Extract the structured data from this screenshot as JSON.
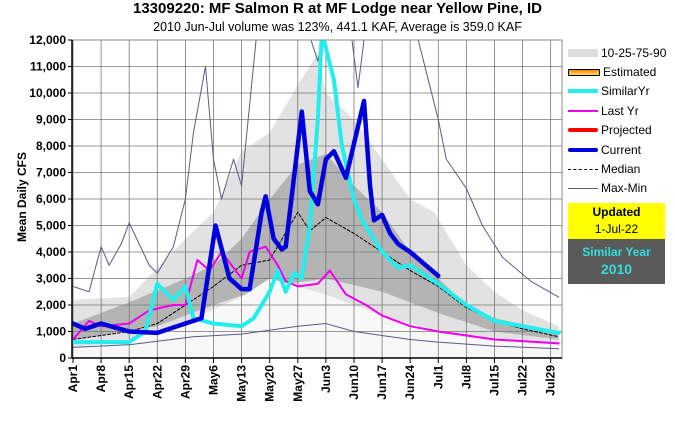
{
  "chart_data": {
    "type": "line",
    "title": "13309220: MF Salmon R at MF Lodge near Yellow Pine, ID",
    "subtitle": "2010 Jun-Jul volume was 123%, 441.1 KAF, Average is 359.0 KAF",
    "xlabel": "",
    "ylabel": "Mean Daily CFS",
    "ylim": [
      0,
      12000
    ],
    "yticks": [
      "0",
      "1,000",
      "2,000",
      "3,000",
      "4,000",
      "5,000",
      "6,000",
      "7,000",
      "8,000",
      "9,000",
      "10,000",
      "11,000",
      "12,000"
    ],
    "xticks": [
      "Apr1",
      "Apr8",
      "Apr15",
      "Apr22",
      "Apr29",
      "May6",
      "May13",
      "May20",
      "May27",
      "Jun3",
      "Jun10",
      "Jun17",
      "Jun24",
      "Jul1",
      "Jul8",
      "Jul15",
      "Jul22",
      "Jul29"
    ],
    "x_unit": "days since Apr1",
    "xlim": [
      0,
      121
    ],
    "grid": true,
    "legend_placement": "right",
    "bands": {
      "p10": [
        [
          0,
          400
        ],
        [
          15,
          700
        ],
        [
          30,
          1500
        ],
        [
          42,
          2300
        ],
        [
          49,
          3000
        ],
        [
          63,
          2400
        ],
        [
          77,
          1600
        ],
        [
          91,
          1000
        ],
        [
          105,
          700
        ],
        [
          121,
          500
        ]
      ],
      "p25": [
        [
          0,
          700
        ],
        [
          21,
          1200
        ],
        [
          35,
          2000
        ],
        [
          49,
          2700
        ],
        [
          63,
          3000
        ],
        [
          77,
          2500
        ],
        [
          91,
          1700
        ],
        [
          105,
          1000
        ],
        [
          121,
          700
        ]
      ],
      "p75": [
        [
          0,
          1300
        ],
        [
          14,
          2100
        ],
        [
          28,
          3000
        ],
        [
          35,
          3500
        ],
        [
          42,
          4500
        ],
        [
          49,
          6000
        ],
        [
          56,
          7300
        ],
        [
          63,
          7700
        ],
        [
          70,
          6500
        ],
        [
          77,
          5500
        ],
        [
          84,
          4000
        ],
        [
          91,
          3000
        ],
        [
          98,
          2000
        ],
        [
          105,
          1500
        ],
        [
          121,
          1000
        ]
      ],
      "p90": [
        [
          0,
          2200
        ],
        [
          14,
          2300
        ],
        [
          28,
          4500
        ],
        [
          35,
          5500
        ],
        [
          42,
          7800
        ],
        [
          49,
          8500
        ],
        [
          56,
          10300
        ],
        [
          61,
          11500
        ],
        [
          63,
          10000
        ],
        [
          70,
          9000
        ],
        [
          77,
          7500
        ],
        [
          84,
          6000
        ],
        [
          90,
          5500
        ],
        [
          98,
          3500
        ],
        [
          105,
          2500
        ],
        [
          112,
          1800
        ],
        [
          121,
          1200
        ]
      ]
    },
    "series": [
      {
        "name": "Max-Min",
        "color": "#5a5a8a",
        "values": [
          [
            0,
            2700
          ],
          [
            4,
            2500
          ],
          [
            7,
            4200
          ],
          [
            9,
            3500
          ],
          [
            12,
            4300
          ],
          [
            14,
            5100
          ],
          [
            19,
            3500
          ],
          [
            21,
            3200
          ],
          [
            25,
            4200
          ],
          [
            28,
            6000
          ],
          [
            30,
            8500
          ],
          [
            33,
            11000
          ],
          [
            35,
            7500
          ],
          [
            37,
            6000
          ],
          [
            40,
            7500
          ],
          [
            42,
            6500
          ],
          [
            46,
            12600
          ],
          [
            58,
            12600
          ],
          [
            61,
            11200
          ],
          [
            63,
            12600
          ],
          [
            69,
            12600
          ],
          [
            71,
            10200
          ],
          [
            73,
            12600
          ],
          [
            86,
            12000
          ],
          [
            91,
            9000
          ],
          [
            93,
            7500
          ],
          [
            98,
            6400
          ],
          [
            102,
            5000
          ],
          [
            107,
            3800
          ],
          [
            114,
            2900
          ],
          [
            121,
            2300
          ]
        ]
      },
      {
        "name": "Max-Min-low",
        "color": "#5a5a8a",
        "values": [
          [
            0,
            400
          ],
          [
            14,
            500
          ],
          [
            30,
            800
          ],
          [
            42,
            900
          ],
          [
            56,
            1200
          ],
          [
            63,
            1300
          ],
          [
            70,
            1000
          ],
          [
            84,
            700
          ],
          [
            91,
            600
          ],
          [
            105,
            450
          ],
          [
            121,
            350
          ]
        ]
      },
      {
        "name": "Median",
        "color": "#000000",
        "values": [
          [
            0,
            700
          ],
          [
            14,
            1000
          ],
          [
            21,
            1300
          ],
          [
            28,
            2000
          ],
          [
            35,
            2700
          ],
          [
            42,
            3500
          ],
          [
            49,
            3700
          ],
          [
            56,
            5500
          ],
          [
            59,
            4800
          ],
          [
            63,
            5300
          ],
          [
            70,
            4700
          ],
          [
            77,
            4000
          ],
          [
            84,
            3300
          ],
          [
            91,
            2700
          ],
          [
            98,
            1900
          ],
          [
            105,
            1400
          ],
          [
            112,
            1100
          ],
          [
            121,
            800
          ]
        ]
      },
      {
        "name": "Last Yr",
        "color": "#ee00ee",
        "values": [
          [
            0,
            700
          ],
          [
            4,
            1400
          ],
          [
            7,
            1200
          ],
          [
            14,
            1300
          ],
          [
            19,
            1800
          ],
          [
            25,
            2000
          ],
          [
            28,
            2000
          ],
          [
            31,
            3700
          ],
          [
            34,
            3300
          ],
          [
            37,
            4000
          ],
          [
            42,
            3000
          ],
          [
            44,
            4000
          ],
          [
            48,
            4200
          ],
          [
            51,
            3500
          ],
          [
            53,
            2900
          ],
          [
            56,
            2700
          ],
          [
            61,
            2800
          ],
          [
            64,
            3300
          ],
          [
            68,
            2400
          ],
          [
            73,
            2000
          ],
          [
            77,
            1600
          ],
          [
            84,
            1200
          ],
          [
            91,
            1000
          ],
          [
            105,
            700
          ],
          [
            121,
            550
          ]
        ]
      },
      {
        "name": "SimilarYr",
        "color": "#22eeee",
        "values": [
          [
            0,
            600
          ],
          [
            14,
            600
          ],
          [
            18,
            1000
          ],
          [
            21,
            2800
          ],
          [
            25,
            2200
          ],
          [
            28,
            2700
          ],
          [
            30,
            1500
          ],
          [
            35,
            1300
          ],
          [
            42,
            1200
          ],
          [
            45,
            1500
          ],
          [
            49,
            2500
          ],
          [
            51,
            3300
          ],
          [
            53,
            2500
          ],
          [
            55,
            3200
          ],
          [
            57,
            3000
          ],
          [
            59,
            5000
          ],
          [
            61,
            9000
          ],
          [
            62,
            12300
          ],
          [
            65,
            10500
          ],
          [
            67,
            8000
          ],
          [
            70,
            6000
          ],
          [
            72,
            5200
          ],
          [
            77,
            4000
          ],
          [
            81,
            3400
          ],
          [
            84,
            3500
          ],
          [
            91,
            2800
          ],
          [
            98,
            2000
          ],
          [
            105,
            1400
          ],
          [
            112,
            1200
          ],
          [
            121,
            950
          ]
        ]
      },
      {
        "name": "Current",
        "color": "#0000dd",
        "values": [
          [
            0,
            1300
          ],
          [
            3,
            1100
          ],
          [
            7,
            1300
          ],
          [
            14,
            1000
          ],
          [
            21,
            950
          ],
          [
            28,
            1300
          ],
          [
            32,
            1500
          ],
          [
            35.5,
            5000
          ],
          [
            39,
            3000
          ],
          [
            42,
            2600
          ],
          [
            44,
            2600
          ],
          [
            47,
            5500
          ],
          [
            48,
            6100
          ],
          [
            50,
            4500
          ],
          [
            52,
            4100
          ],
          [
            53,
            4200
          ],
          [
            57,
            9300
          ],
          [
            59,
            6300
          ],
          [
            61,
            5800
          ],
          [
            63,
            7500
          ],
          [
            65,
            7800
          ],
          [
            68,
            6800
          ],
          [
            72.5,
            9700
          ],
          [
            74,
            6500
          ],
          [
            75,
            5200
          ],
          [
            77,
            5400
          ],
          [
            79,
            4700
          ],
          [
            81,
            4300
          ],
          [
            84,
            4000
          ],
          [
            91,
            3100
          ]
        ]
      }
    ]
  },
  "legend": {
    "bands": "10-25-75-90",
    "estimated": "Estimated",
    "similar": "SimilarYr",
    "lastyr": "Last Yr",
    "projected": "Projected",
    "current": "Current",
    "median": "Median",
    "maxmin": "Max-Min"
  },
  "updated": {
    "label": "Updated",
    "date": "1-Jul-22"
  },
  "similar_year": {
    "label": "Similar Year",
    "year": "2010"
  }
}
